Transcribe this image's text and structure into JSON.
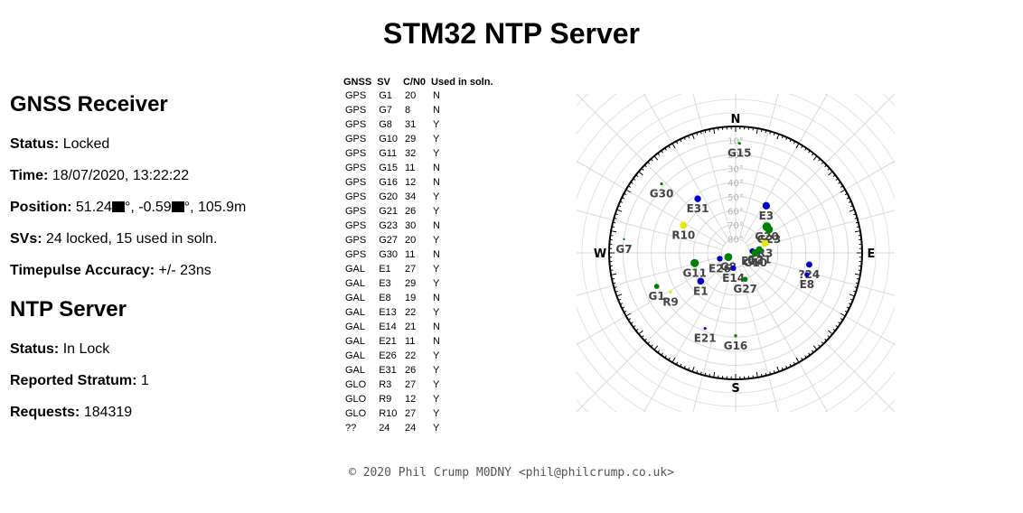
{
  "title": "STM32 NTP Server",
  "gnss": {
    "heading": "GNSS Receiver",
    "status_label": "Status:",
    "status": "Locked",
    "time_label": "Time:",
    "time": "18/07/2020, 13:22:22",
    "position_label": "Position:",
    "lat": "51.24",
    "lon": "-0.59",
    "alt": "105.9m",
    "svs_label": "SVs:",
    "svs": "24 locked, 15 used in soln.",
    "tp_label": "Timepulse Accuracy:",
    "tp": "+/- 23ns"
  },
  "ntp": {
    "heading": "NTP Server",
    "status_label": "Status:",
    "status": "In Lock",
    "stratum_label": "Reported Stratum:",
    "stratum": "1",
    "requests_label": "Requests:",
    "requests": "184319"
  },
  "sv_table": {
    "headers": [
      "GNSS",
      "SV",
      "C/N0",
      "Used in soln."
    ],
    "rows": [
      [
        "GPS",
        "G1",
        "20",
        "N"
      ],
      [
        "GPS",
        "G7",
        "8",
        "N"
      ],
      [
        "GPS",
        "G8",
        "31",
        "Y"
      ],
      [
        "GPS",
        "G10",
        "29",
        "Y"
      ],
      [
        "GPS",
        "G11",
        "32",
        "Y"
      ],
      [
        "GPS",
        "G15",
        "11",
        "N"
      ],
      [
        "GPS",
        "G16",
        "12",
        "N"
      ],
      [
        "GPS",
        "G20",
        "34",
        "Y"
      ],
      [
        "GPS",
        "G21",
        "26",
        "Y"
      ],
      [
        "GPS",
        "G23",
        "30",
        "N"
      ],
      [
        "GPS",
        "G27",
        "20",
        "Y"
      ],
      [
        "GPS",
        "G30",
        "11",
        "N"
      ],
      [
        "GAL",
        "E1",
        "27",
        "Y"
      ],
      [
        "GAL",
        "E3",
        "29",
        "Y"
      ],
      [
        "GAL",
        "E8",
        "19",
        "N"
      ],
      [
        "GAL",
        "E13",
        "22",
        "Y"
      ],
      [
        "GAL",
        "E14",
        "21",
        "N"
      ],
      [
        "GAL",
        "E21",
        "11",
        "N"
      ],
      [
        "GAL",
        "E26",
        "22",
        "Y"
      ],
      [
        "GAL",
        "E31",
        "26",
        "Y"
      ],
      [
        "GLO",
        "R3",
        "27",
        "Y"
      ],
      [
        "GLO",
        "R9",
        "12",
        "Y"
      ],
      [
        "GLO",
        "R10",
        "27",
        "Y"
      ],
      [
        "??",
        "24",
        "24",
        "Y"
      ]
    ]
  },
  "skyplot": {
    "cardinals": {
      "N": "N",
      "E": "E",
      "S": "S",
      "W": "W"
    },
    "elevation_labels": [
      "10°",
      "20°",
      "30°",
      "40°",
      "50°",
      "60°",
      "70°",
      "80°"
    ],
    "colors": {
      "gps": "#008000",
      "gal": "#0000cc",
      "glo": "#e6e600",
      "other": "#0000cc"
    },
    "sats": [
      {
        "id": "G15",
        "az": 2,
        "el": 12,
        "sys": "gps",
        "cn0": 11
      },
      {
        "id": "E3",
        "az": 33,
        "el": 50,
        "sys": "gal",
        "cn0": 29
      },
      {
        "id": "G30",
        "az": 313,
        "el": 18,
        "sys": "gps",
        "cn0": 11
      },
      {
        "id": "E31",
        "az": 325,
        "el": 43,
        "sys": "gal",
        "cn0": 26
      },
      {
        "id": "G20",
        "az": 50,
        "el": 61,
        "sys": "gps",
        "cn0": 34
      },
      {
        "id": "G23",
        "az": 55,
        "el": 61,
        "sys": "gps",
        "cn0": 30
      },
      {
        "id": "R10",
        "az": 298,
        "el": 48,
        "sys": "glo",
        "cn0": 27
      },
      {
        "id": "R3",
        "az": 72,
        "el": 68,
        "sys": "glo",
        "cn0": 27
      },
      {
        "id": "E13",
        "az": 84,
        "el": 78,
        "sys": "gal",
        "cn0": 22
      },
      {
        "id": "G21",
        "az": 82,
        "el": 73,
        "sys": "gps",
        "cn0": 26
      },
      {
        "id": "G10",
        "az": 90,
        "el": 76,
        "sys": "gps",
        "cn0": 29
      },
      {
        "id": "G7",
        "az": 277,
        "el": 10,
        "sys": "gps",
        "cn0": 8
      },
      {
        "id": "?24",
        "az": 99,
        "el": 37,
        "sys": "other",
        "cn0": 24
      },
      {
        "id": "G11",
        "az": 256,
        "el": 60,
        "sys": "gps",
        "cn0": 32
      },
      {
        "id": "E26",
        "az": 250,
        "el": 78,
        "sys": "gal",
        "cn0": 22
      },
      {
        "id": "G8",
        "az": 240,
        "el": 84,
        "sys": "gps",
        "cn0": 31
      },
      {
        "id": "E14",
        "az": 188,
        "el": 79,
        "sys": "gal",
        "cn0": 21
      },
      {
        "id": "E1",
        "az": 231,
        "el": 58,
        "sys": "gal",
        "cn0": 27
      },
      {
        "id": "E8",
        "az": 107,
        "el": 37,
        "sys": "gal",
        "cn0": 19
      },
      {
        "id": "G27",
        "az": 160,
        "el": 70,
        "sys": "gps",
        "cn0": 20
      },
      {
        "id": "G1",
        "az": 247,
        "el": 29,
        "sys": "gps",
        "cn0": 20
      },
      {
        "id": "R9",
        "az": 239,
        "el": 36,
        "sys": "glo",
        "cn0": 12
      },
      {
        "id": "E21",
        "az": 202,
        "el": 32,
        "sys": "gal",
        "cn0": 11
      },
      {
        "id": "G16",
        "az": 180,
        "el": 31,
        "sys": "gps",
        "cn0": 12
      }
    ]
  },
  "footer": "© 2020 Phil Crump M0DNY <phil@philcrump.co.uk>"
}
